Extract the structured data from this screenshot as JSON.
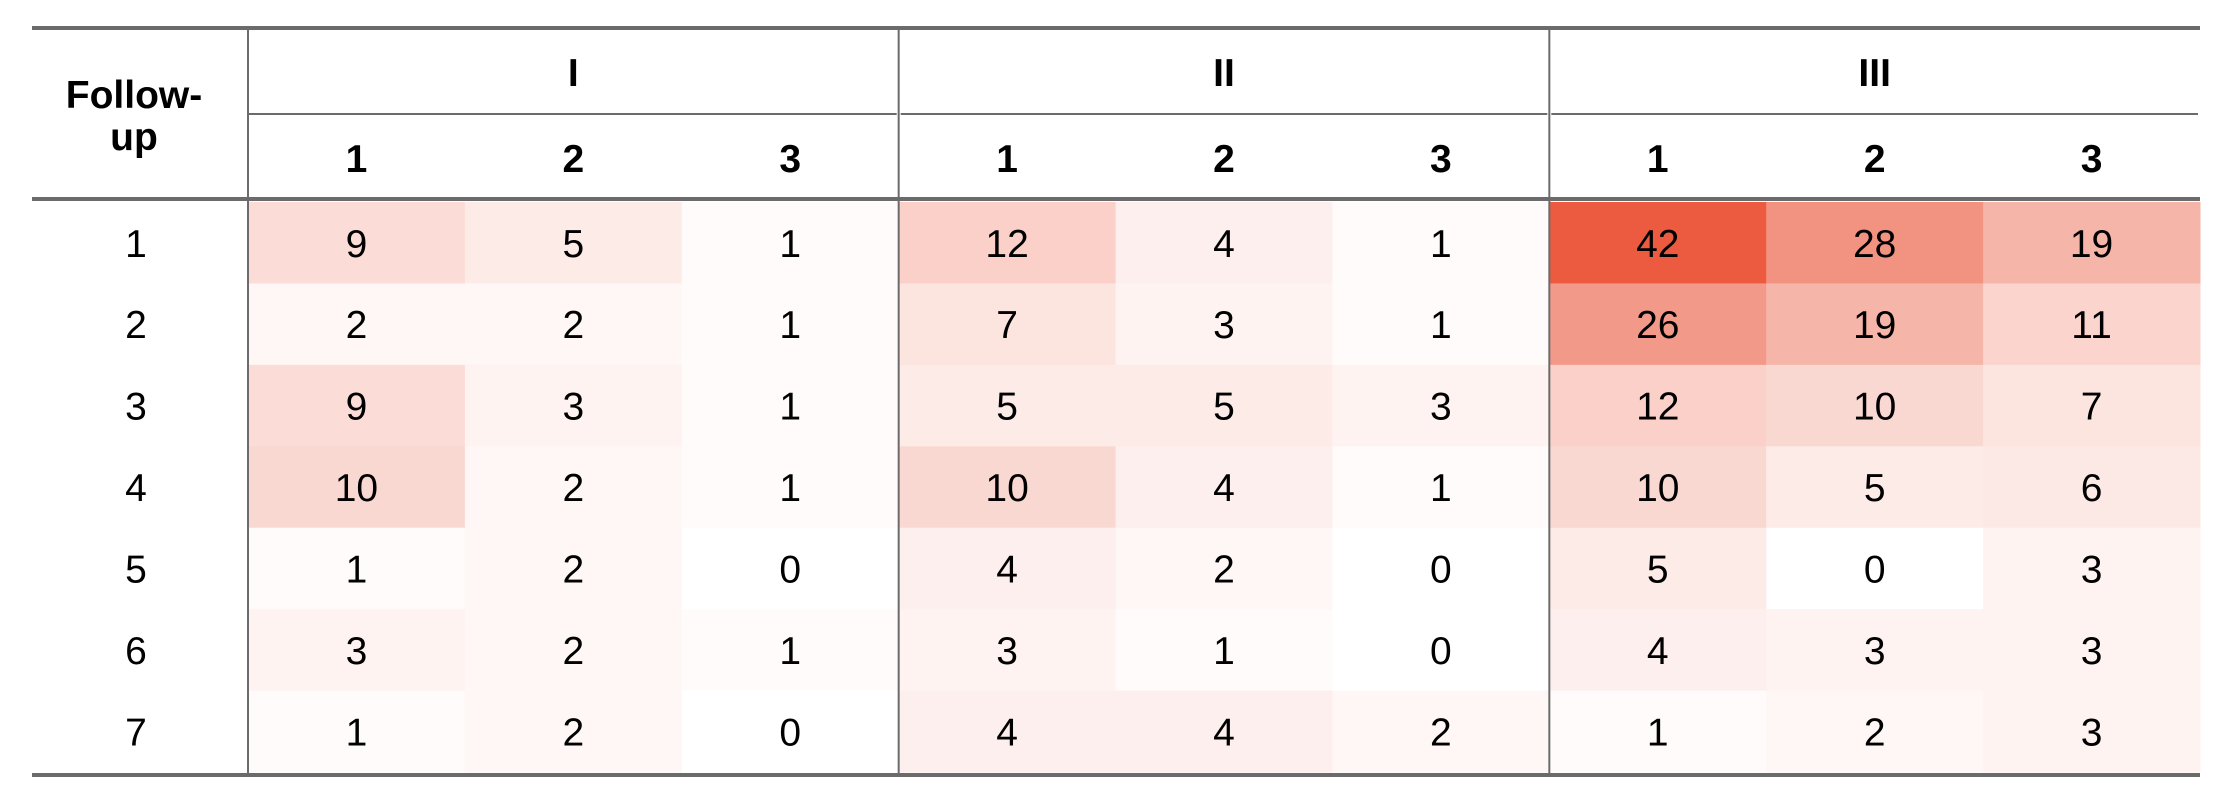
{
  "chart_data": {
    "type": "heatmap",
    "row_header": "Follow-\nup",
    "groups": [
      "I",
      "II",
      "III"
    ],
    "sub_columns": [
      "1",
      "2",
      "3"
    ],
    "rows": [
      "1",
      "2",
      "3",
      "4",
      "5",
      "6",
      "7"
    ],
    "values": [
      [
        9,
        5,
        1,
        12,
        4,
        1,
        42,
        28,
        19
      ],
      [
        2,
        2,
        1,
        7,
        3,
        1,
        26,
        19,
        11
      ],
      [
        9,
        3,
        1,
        5,
        5,
        3,
        12,
        10,
        7
      ],
      [
        10,
        2,
        1,
        10,
        4,
        1,
        10,
        5,
        6
      ],
      [
        1,
        2,
        0,
        4,
        2,
        0,
        5,
        0,
        3
      ],
      [
        3,
        2,
        1,
        3,
        1,
        0,
        4,
        3,
        3
      ],
      [
        1,
        2,
        0,
        4,
        4,
        2,
        1,
        2,
        3
      ]
    ],
    "color_scale": {
      "low": "#ffffff",
      "high": "#ec5b40",
      "min": 0,
      "max": 42
    }
  }
}
